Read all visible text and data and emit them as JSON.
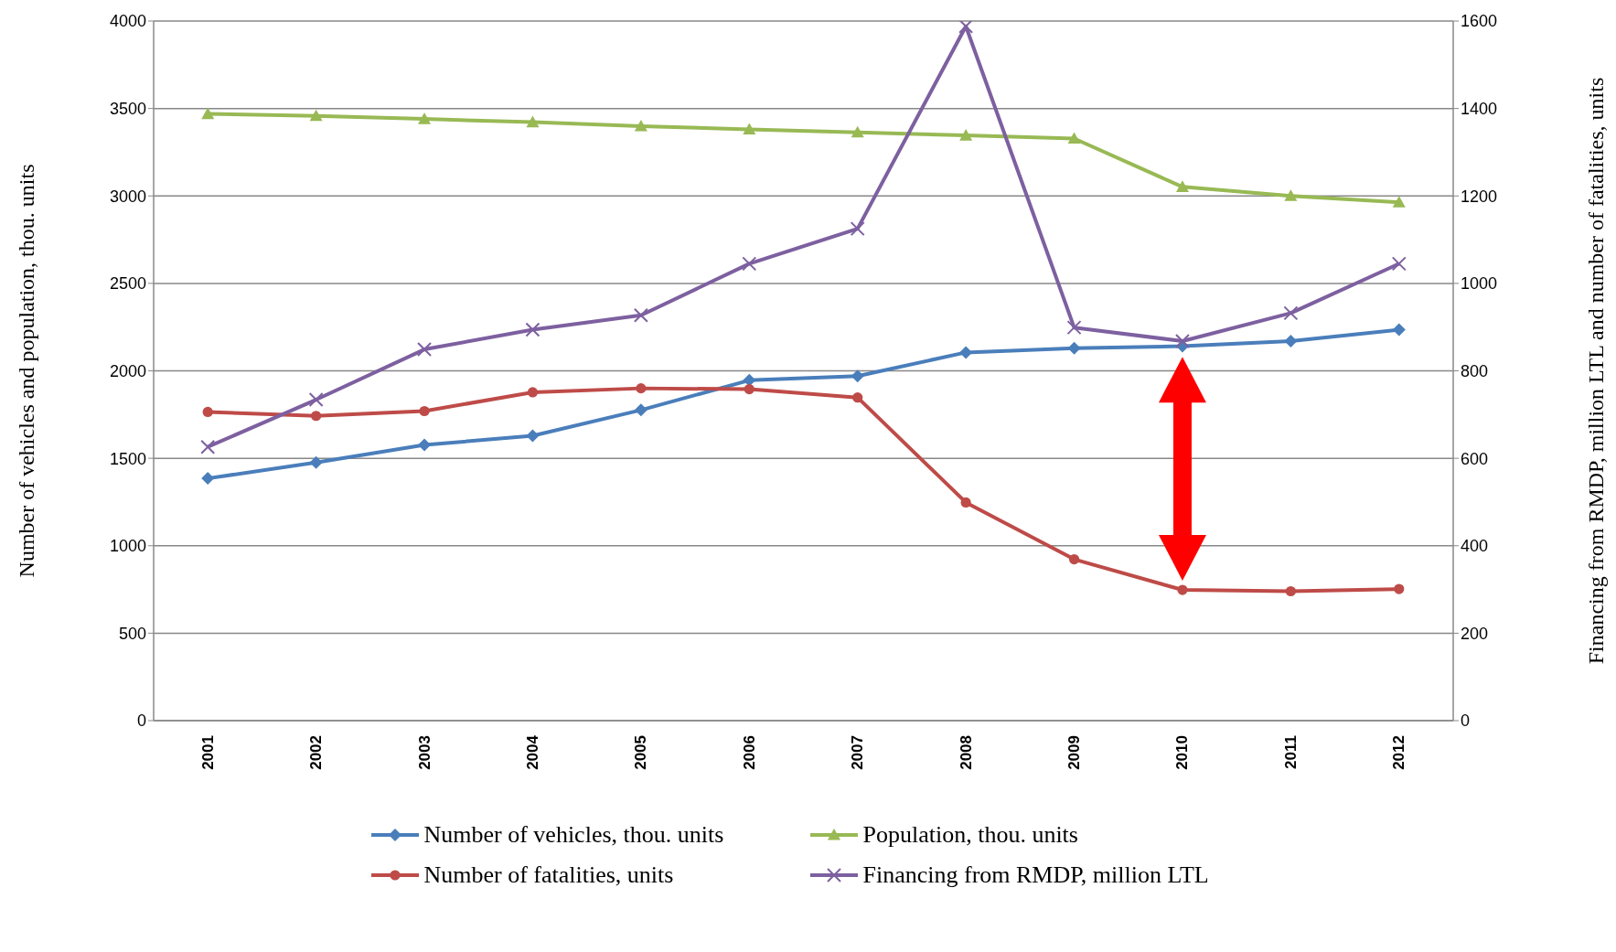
{
  "chart_data": {
    "type": "line",
    "ylabel": "Number of vehicles and population, thou. units",
    "y2label": "Financing from RMDP, million LTL and number of fatalities, units",
    "categories": [
      "2001",
      "2002",
      "2003",
      "2004",
      "2005",
      "2006",
      "2007",
      "2008",
      "2009",
      "2010",
      "2011",
      "2012"
    ],
    "series": [
      {
        "name": "Number of vehicles, thou. units",
        "color": "#4a7ebb",
        "marker": "diamond",
        "values": [
          1385,
          1476,
          1576,
          1629,
          1776,
          1946,
          1970,
          2105,
          2129,
          2141,
          2170,
          2235
        ]
      },
      {
        "name": "Population, thou. units",
        "color": "#98b954",
        "marker": "triangle",
        "values": [
          3469,
          3458,
          3440,
          3422,
          3399,
          3381,
          3364,
          3346,
          3328,
          3052,
          3000,
          2964
        ]
      },
      {
        "name": "Number of fatalities, units",
        "color": "#be4b48",
        "marker": "circle",
        "axis": "y2",
        "values": [
          706,
          697,
          708,
          751,
          760,
          758,
          739,
          499,
          369,
          299,
          296,
          301
        ]
      },
      {
        "name": "Financing from RMDP, million LTL",
        "color": "#7d60a0",
        "marker": "cross",
        "axis": "y2",
        "values": [
          626,
          734,
          849,
          894,
          927,
          1045,
          1125,
          1588,
          899,
          868,
          932,
          1045
        ]
      }
    ],
    "ylim": [
      0,
      4000
    ],
    "yticks": [
      0,
      500,
      1000,
      1500,
      2000,
      2500,
      3000,
      3500,
      4000
    ],
    "y2lim": [
      0,
      1600
    ],
    "y2ticks": [
      0,
      200,
      400,
      600,
      800,
      1000,
      1200,
      1400,
      1600
    ],
    "grid": "y",
    "legend": "bottom",
    "line_style": "solid"
  }
}
